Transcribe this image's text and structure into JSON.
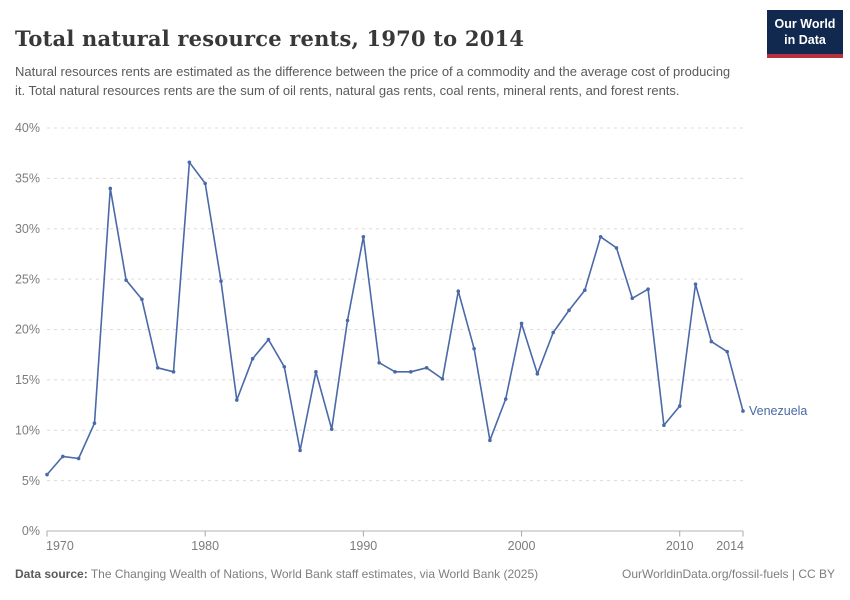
{
  "header": {
    "title": "Total natural resource rents, 1970 to 2014",
    "subtitle": "Natural resources rents are estimated as the difference between the price of a commodity and the average cost of producing it. Total natural resources rents are the sum of oil rents, natural gas rents, coal rents, mineral rents, and forest rents.",
    "logo": {
      "line1": "Our World",
      "line2": "in Data",
      "bg_color": "#12294f",
      "accent_color": "#b5333e"
    }
  },
  "chart_data": {
    "type": "line",
    "title": "Total natural resource rents, 1970 to 2014",
    "xlabel": "",
    "ylabel": "",
    "xlim": [
      1970,
      2014
    ],
    "ylim": [
      0,
      40
    ],
    "grid": true,
    "legend_position": "end-of-line",
    "x_ticks": [
      1970,
      1980,
      1990,
      2000,
      2010,
      2014
    ],
    "y_ticks": [
      0,
      5,
      10,
      15,
      20,
      25,
      30,
      35,
      40
    ],
    "y_tick_suffix": "%",
    "colors": {
      "gridline": "#dcdcdc",
      "axis_line": "#b3b3b3",
      "tick_text": "#7c7c7c"
    },
    "series": [
      {
        "name": "Venezuela",
        "color": "#4a69a8",
        "x": [
          1970,
          1971,
          1972,
          1973,
          1974,
          1975,
          1976,
          1977,
          1978,
          1979,
          1980,
          1981,
          1982,
          1983,
          1984,
          1985,
          1986,
          1987,
          1988,
          1989,
          1990,
          1991,
          1992,
          1993,
          1994,
          1995,
          1996,
          1997,
          1998,
          1999,
          2000,
          2001,
          2002,
          2003,
          2004,
          2005,
          2006,
          2007,
          2008,
          2009,
          2010,
          2011,
          2012,
          2013,
          2014
        ],
        "values": [
          5.6,
          7.4,
          7.2,
          10.7,
          34.0,
          24.9,
          23.0,
          16.2,
          15.8,
          36.6,
          34.5,
          24.8,
          13.0,
          17.1,
          19.0,
          16.3,
          8.0,
          15.8,
          10.1,
          20.9,
          29.2,
          16.7,
          15.8,
          15.8,
          16.2,
          15.1,
          23.8,
          18.1,
          9.0,
          13.1,
          20.6,
          15.6,
          19.7,
          21.9,
          23.9,
          29.2,
          28.1,
          23.1,
          24.0,
          10.5,
          12.4,
          24.5,
          18.8,
          17.8,
          11.9
        ]
      }
    ]
  },
  "footer": {
    "datasource_label": "Data source:",
    "datasource_text": " The Changing Wealth of Nations, World Bank staff estimates, via World Bank (2025)",
    "attribution": "OurWorldinData.org/fossil-fuels | CC BY"
  }
}
